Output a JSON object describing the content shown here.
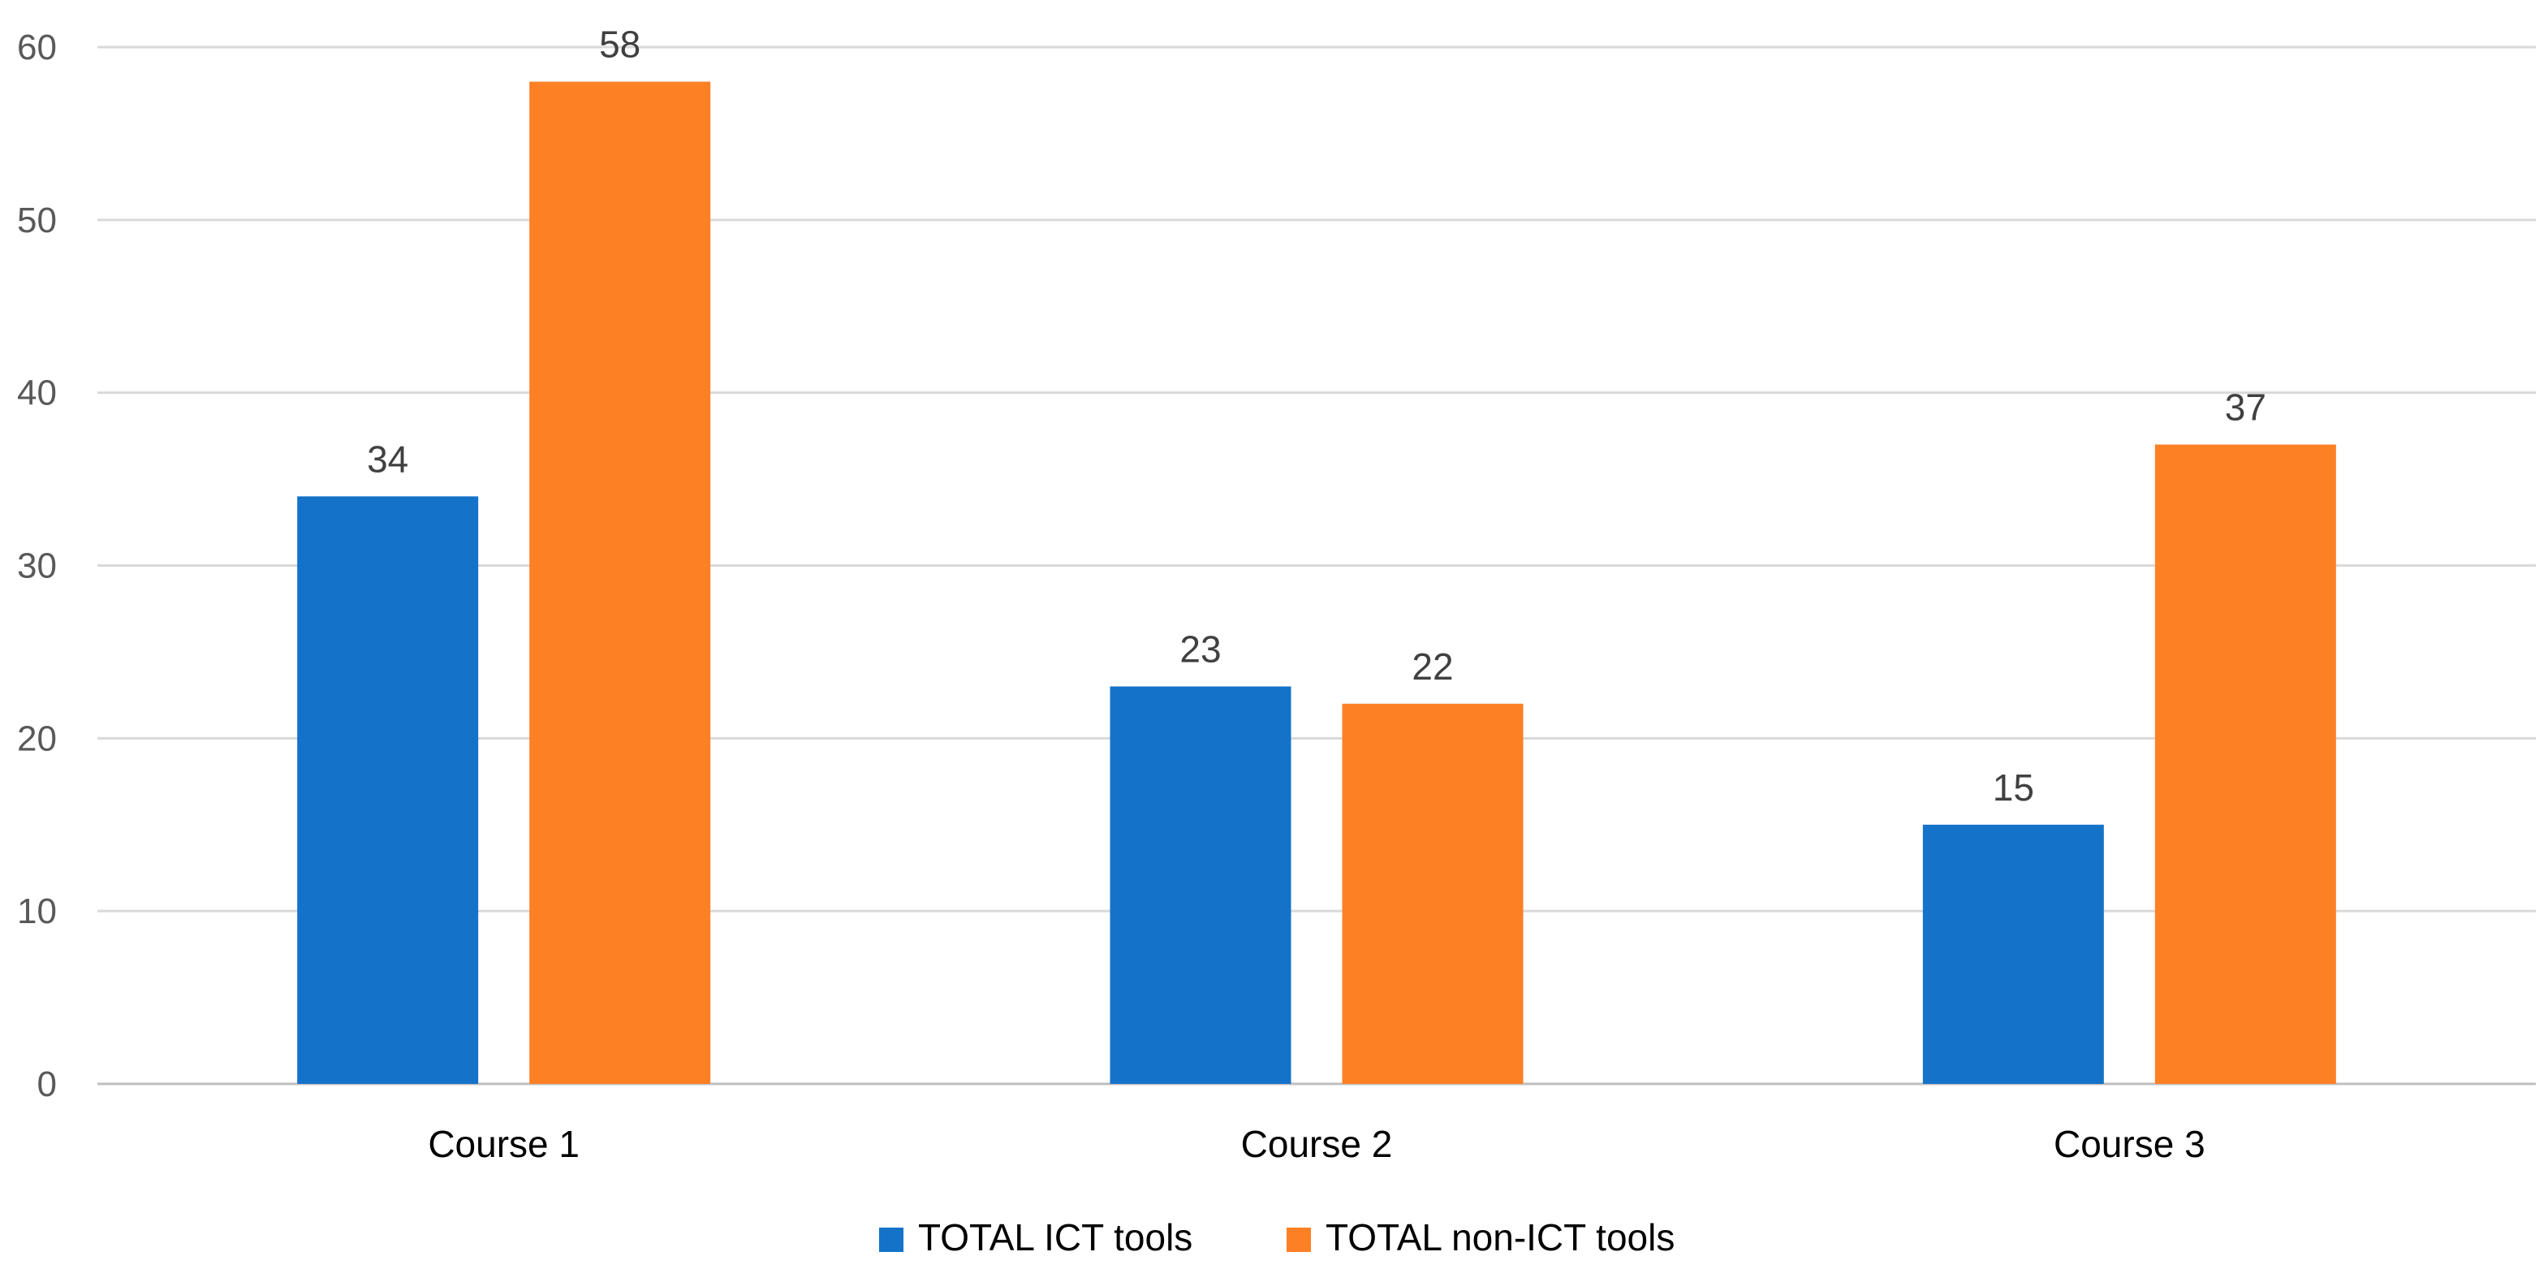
{
  "chart_data": {
    "type": "bar",
    "categories": [
      "Course 1",
      "Course 2",
      "Course 3"
    ],
    "series": [
      {
        "name": "TOTAL ICT tools",
        "values": [
          34,
          23,
          15
        ],
        "color": "#1473c9"
      },
      {
        "name": "TOTAL non-ICT tools",
        "values": [
          58,
          22,
          37
        ],
        "color": "#fd8025"
      }
    ],
    "title": "",
    "xlabel": "",
    "ylabel": "",
    "ylim": [
      0,
      60
    ],
    "yticks": [
      0,
      10,
      20,
      30,
      40,
      50,
      60
    ],
    "grid": true,
    "legend_position": "bottom",
    "data_labels": true
  }
}
